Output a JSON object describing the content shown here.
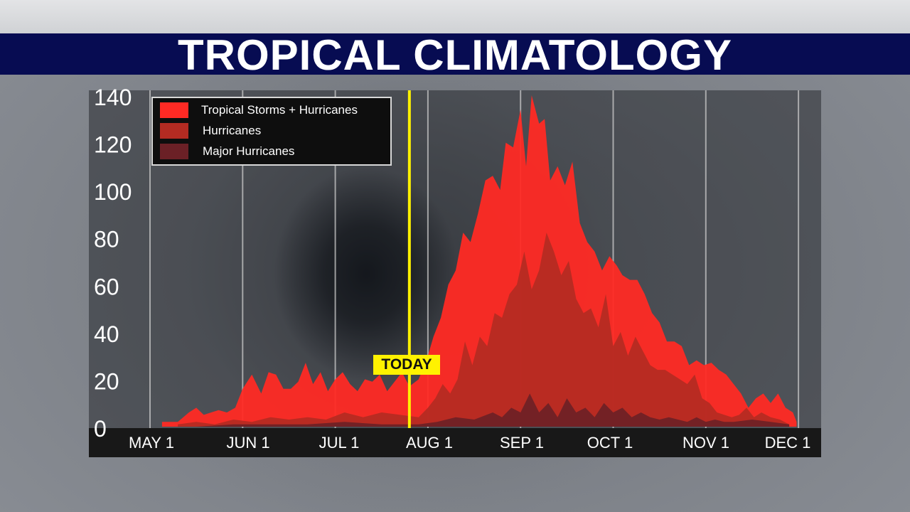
{
  "title": "TROPICAL CLIMATOLOGY",
  "today_label": "TODAY",
  "today_date_value": 2.8,
  "legend": {
    "items": [
      {
        "label": "Tropical Storms + Hurricanes",
        "color": "#ff2a24"
      },
      {
        "label": "Hurricanes",
        "color": "#b32b22"
      },
      {
        "label": "Major Hurricanes",
        "color": "#6b2026"
      }
    ]
  },
  "colors": {
    "title_bar": "#070c52",
    "today_line": "#fff200",
    "gridline": "#c8c8c8"
  },
  "chart_data": {
    "type": "area",
    "title": "TROPICAL CLIMATOLOGY",
    "x_unit": "months after May 1",
    "categories": [
      "MAY 1",
      "JUN 1",
      "JUL 1",
      "AUG 1",
      "SEP 1",
      "OCT 1",
      "NOV 1",
      "DEC 1"
    ],
    "ylim": [
      0,
      140
    ],
    "yticks": [
      0,
      20,
      40,
      60,
      80,
      100,
      120,
      140
    ],
    "grid": true,
    "legend_position": "top-left",
    "series": [
      {
        "name": "Tropical Storms + Hurricanes",
        "color": "#ff2a24",
        "x": [
          0.13,
          0.22,
          0.3,
          0.42,
          0.5,
          0.58,
          0.66,
          0.74,
          0.83,
          0.92,
          1.0,
          1.1,
          1.2,
          1.28,
          1.36,
          1.44,
          1.52,
          1.6,
          1.68,
          1.76,
          1.84,
          1.92,
          2.0,
          2.08,
          2.16,
          2.24,
          2.32,
          2.4,
          2.48,
          2.56,
          2.64,
          2.72,
          2.8,
          2.9,
          3.0,
          3.06,
          3.14,
          3.22,
          3.3,
          3.38,
          3.46,
          3.54,
          3.62,
          3.7,
          3.78,
          3.84,
          3.92,
          4.0,
          4.06,
          4.12,
          4.2,
          4.26,
          4.32,
          4.4,
          4.48,
          4.56,
          4.64,
          4.72,
          4.8,
          4.88,
          4.96,
          5.04,
          5.1,
          5.18,
          5.26,
          5.34,
          5.42,
          5.5,
          5.58,
          5.66,
          5.74,
          5.82,
          5.9,
          5.98,
          6.06,
          6.14,
          6.22,
          6.3,
          6.38,
          6.46,
          6.54,
          6.62,
          6.7,
          6.78,
          6.86,
          6.94,
          6.98
        ],
        "values": [
          2,
          2,
          2,
          6,
          8,
          5,
          6,
          7,
          6,
          8,
          16,
          22,
          14,
          23,
          22,
          16,
          16,
          19,
          27,
          18,
          23,
          15,
          20,
          23,
          18,
          15,
          20,
          19,
          22,
          15,
          19,
          23,
          17,
          20,
          30,
          38,
          46,
          60,
          66,
          82,
          78,
          90,
          104,
          106,
          100,
          120,
          118,
          134,
          110,
          140,
          128,
          130,
          104,
          110,
          102,
          112,
          86,
          78,
          74,
          66,
          72,
          68,
          64,
          62,
          62,
          56,
          48,
          44,
          36,
          36,
          34,
          26,
          28,
          26,
          27,
          24,
          22,
          18,
          14,
          8,
          12,
          14,
          10,
          14,
          8,
          6,
          2
        ]
      },
      {
        "name": "Hurricanes",
        "color": "#b32b22",
        "x": [
          0.3,
          0.5,
          0.7,
          0.9,
          1.1,
          1.3,
          1.5,
          1.7,
          1.9,
          2.1,
          2.3,
          2.5,
          2.7,
          2.9,
          3.0,
          3.08,
          3.16,
          3.24,
          3.32,
          3.4,
          3.48,
          3.56,
          3.64,
          3.72,
          3.8,
          3.88,
          3.96,
          4.04,
          4.12,
          4.2,
          4.28,
          4.36,
          4.44,
          4.52,
          4.6,
          4.68,
          4.76,
          4.84,
          4.92,
          5.0,
          5.08,
          5.16,
          5.24,
          5.32,
          5.4,
          5.48,
          5.56,
          5.64,
          5.72,
          5.8,
          5.88,
          5.96,
          6.04,
          6.12,
          6.2,
          6.28,
          6.36,
          6.44,
          6.52,
          6.6,
          6.7,
          6.8,
          6.9
        ],
        "values": [
          1,
          2,
          1,
          3,
          2,
          4,
          3,
          4,
          3,
          6,
          4,
          6,
          5,
          4,
          8,
          12,
          18,
          14,
          20,
          36,
          26,
          38,
          34,
          48,
          46,
          56,
          60,
          74,
          58,
          66,
          82,
          74,
          64,
          70,
          54,
          48,
          50,
          42,
          56,
          34,
          40,
          30,
          38,
          32,
          26,
          24,
          24,
          22,
          20,
          18,
          22,
          12,
          10,
          6,
          5,
          4,
          5,
          8,
          4,
          6,
          4,
          3,
          1
        ]
      },
      {
        "name": "Major Hurricanes",
        "color": "#6b2026",
        "x": [
          0.5,
          0.9,
          1.3,
          1.7,
          2.1,
          2.5,
          2.9,
          3.1,
          3.3,
          3.5,
          3.7,
          3.8,
          3.9,
          4.0,
          4.1,
          4.2,
          4.3,
          4.4,
          4.5,
          4.6,
          4.7,
          4.8,
          4.9,
          5.0,
          5.1,
          5.2,
          5.3,
          5.4,
          5.5,
          5.6,
          5.7,
          5.8,
          5.9,
          6.0,
          6.1,
          6.2,
          6.3,
          6.5,
          6.7,
          6.9
        ],
        "values": [
          0,
          1,
          1,
          1,
          2,
          1,
          1,
          2,
          4,
          3,
          6,
          4,
          8,
          6,
          14,
          6,
          10,
          4,
          12,
          6,
          8,
          4,
          10,
          6,
          8,
          4,
          6,
          4,
          3,
          4,
          3,
          2,
          4,
          2,
          3,
          2,
          2,
          3,
          2,
          1
        ]
      }
    ]
  }
}
